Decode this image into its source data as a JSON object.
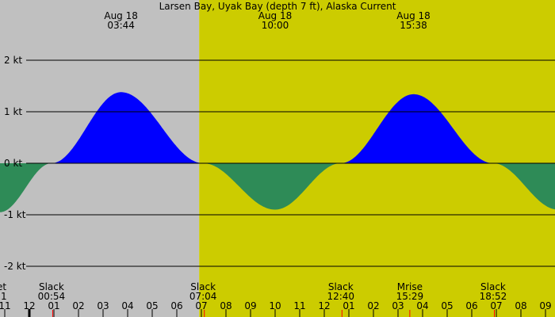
{
  "chart_data": {
    "type": "area",
    "title": "Larsen Bay, Uyak Bay (depth 7 ft), Alaska Current",
    "colors": {
      "night_background": "#c0c0c0",
      "day_background": "#cccc00",
      "flood": "#0000ff",
      "ebb": "#2e8b57",
      "gridline": "#000000",
      "sun_marker": "#ff0000"
    },
    "y_axis": {
      "unit": "kt",
      "ylim": [
        -2.1,
        2.1
      ],
      "ticks": [
        {
          "value": 2,
          "label": "2 kt"
        },
        {
          "value": 1,
          "label": "1 kt"
        },
        {
          "value": 0,
          "label": "0 kt"
        },
        {
          "value": -1,
          "label": "-1 kt"
        },
        {
          "value": -2,
          "label": "-2 kt"
        }
      ],
      "grid": true
    },
    "x_axis": {
      "xlim_hours": [
        22.8,
        33.9
      ],
      "hour_ticks": [
        {
          "t": 23,
          "label": "11"
        },
        {
          "t": 24,
          "label": "12"
        },
        {
          "t": 25,
          "label": "01"
        },
        {
          "t": 26,
          "label": "02"
        },
        {
          "t": 27,
          "label": "03"
        },
        {
          "t": 28,
          "label": "04"
        },
        {
          "t": 29,
          "label": "05"
        },
        {
          "t": 30,
          "label": "06"
        },
        {
          "t": 31,
          "label": "07"
        },
        {
          "t": 32,
          "label": "08"
        },
        {
          "t": 33,
          "label": "09"
        },
        {
          "t": 34,
          "label": "10"
        },
        {
          "t": 35,
          "label": "11"
        },
        {
          "t": 36,
          "label": "12"
        },
        {
          "t": 37,
          "label": "01"
        },
        {
          "t": 38,
          "label": "02"
        },
        {
          "t": 39,
          "label": "03"
        },
        {
          "t": 40,
          "label": "04"
        },
        {
          "t": 41,
          "label": "05"
        },
        {
          "t": 42,
          "label": "06"
        },
        {
          "t": 43,
          "label": "07"
        },
        {
          "t": 44,
          "label": "08"
        },
        {
          "t": 45,
          "label": "09"
        }
      ],
      "midnight_hour": 24
    },
    "daylight_start_hour": 31.07,
    "extrema_labels": [
      {
        "t": 27.73,
        "date": "Aug 18",
        "time": "03:44"
      },
      {
        "t": 34.0,
        "date": "Aug 18",
        "time": "10:00"
      },
      {
        "t": 39.63,
        "date": "Aug 18",
        "time": "15:38"
      }
    ],
    "events": [
      {
        "t": 22.8,
        "label": "et",
        "time": "1"
      },
      {
        "t": 24.9,
        "label": "Slack",
        "time": "00:54"
      },
      {
        "t": 31.07,
        "label": "Slack",
        "time": "07:04"
      },
      {
        "t": 36.67,
        "label": "Slack",
        "time": "12:40"
      },
      {
        "t": 39.48,
        "label": "Mrise",
        "time": "15:29"
      },
      {
        "t": 42.87,
        "label": "Slack",
        "time": "18:52"
      }
    ],
    "red_marks_hours": [
      24.95,
      31.12,
      36.72,
      39.48,
      42.92
    ],
    "series": [
      {
        "x": [
          22.8,
          24.9,
          27.73,
          31.07,
          34.0,
          36.67,
          39.63,
          42.87,
          45.5
        ],
        "y": [
          -0.95,
          0.0,
          1.38,
          0.0,
          -0.9,
          0.0,
          1.34,
          0.0,
          -0.9
        ]
      }
    ]
  }
}
